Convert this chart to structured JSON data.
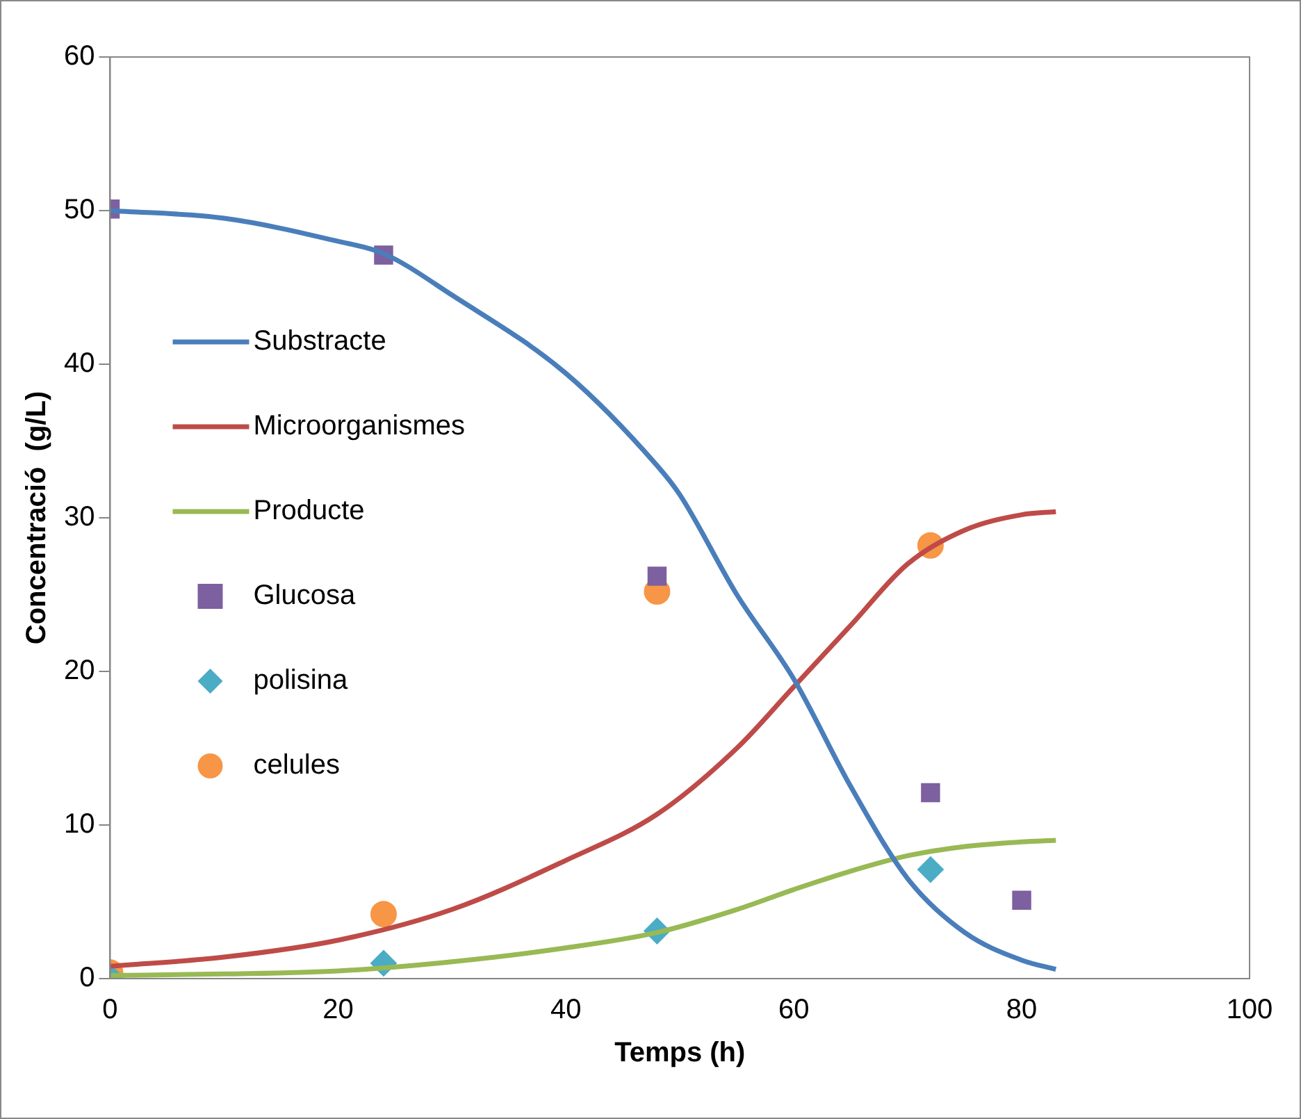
{
  "chart_data": {
    "type": "line",
    "xlabel": "Temps (h)",
    "ylabel": "Concentració  (g/L)",
    "xlim": [
      0,
      100
    ],
    "xticks": [
      0,
      20,
      40,
      60,
      80,
      100
    ],
    "ylim": [
      0,
      60
    ],
    "yticks": [
      0,
      10,
      20,
      30,
      40,
      50,
      60
    ],
    "grid": false,
    "legend": "left",
    "series": [
      {
        "name": "Substracte",
        "type": "line",
        "color": "#4a7ebb",
        "marker": "none",
        "x": [
          0,
          10,
          20,
          24,
          30,
          40,
          48,
          50,
          55,
          60,
          65,
          70,
          75,
          80,
          83
        ],
        "values": [
          50.0,
          49.5,
          48.0,
          47.2,
          44.5,
          39.4,
          33.4,
          31.5,
          25,
          19.5,
          12.5,
          6.5,
          3,
          1.2,
          0.6
        ]
      },
      {
        "name": "Microorganismes",
        "type": "line",
        "color": "#be4b48",
        "marker": "none",
        "x": [
          0,
          10,
          20,
          30,
          40,
          48,
          55,
          60,
          65,
          70,
          75,
          80,
          83
        ],
        "values": [
          0.8,
          1.4,
          2.5,
          4.5,
          7.7,
          10.7,
          15,
          19,
          23,
          27,
          29.2,
          30.2,
          30.4
        ]
      },
      {
        "name": "Producte",
        "type": "line",
        "color": "#98b954",
        "marker": "none",
        "x": [
          0,
          10,
          20,
          30,
          40,
          48,
          55,
          60,
          65,
          70,
          75,
          80,
          83
        ],
        "values": [
          0.2,
          0.3,
          0.5,
          1.1,
          2.0,
          3.0,
          4.5,
          5.8,
          7.0,
          8.0,
          8.6,
          8.9,
          9.0
        ]
      },
      {
        "name": "Glucosa",
        "type": "scatter",
        "color": "#7d60a0",
        "marker": "square",
        "x": [
          0,
          24,
          48,
          72,
          80
        ],
        "values": [
          50.1,
          47.1,
          26.2,
          12.1,
          5.1
        ]
      },
      {
        "name": "polisina",
        "type": "scatter",
        "color": "#4aacc5",
        "marker": "diamond",
        "x": [
          0,
          24,
          48,
          72
        ],
        "values": [
          0.1,
          1.0,
          3.1,
          7.1
        ]
      },
      {
        "name": "celules",
        "type": "scatter",
        "color": "#f79646",
        "marker": "circle",
        "x": [
          0,
          24,
          48,
          72
        ],
        "values": [
          0.4,
          4.2,
          25.2,
          28.2
        ]
      }
    ]
  }
}
